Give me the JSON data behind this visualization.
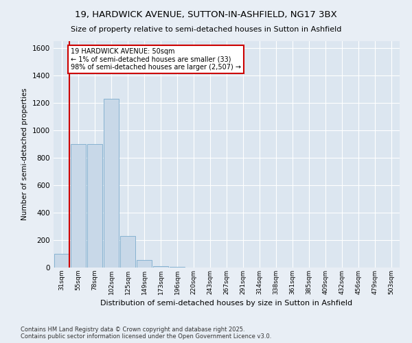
{
  "title": "19, HARDWICK AVENUE, SUTTON-IN-ASHFIELD, NG17 3BX",
  "subtitle": "Size of property relative to semi-detached houses in Sutton in Ashfield",
  "xlabel": "Distribution of semi-detached houses by size in Sutton in Ashfield",
  "ylabel": "Number of semi-detached properties",
  "categories": [
    "31sqm",
    "55sqm",
    "78sqm",
    "102sqm",
    "125sqm",
    "149sqm",
    "173sqm",
    "196sqm",
    "220sqm",
    "243sqm",
    "267sqm",
    "291sqm",
    "314sqm",
    "338sqm",
    "361sqm",
    "385sqm",
    "409sqm",
    "432sqm",
    "456sqm",
    "479sqm",
    "503sqm"
  ],
  "values": [
    100,
    900,
    900,
    1230,
    230,
    55,
    10,
    5,
    0,
    0,
    0,
    0,
    0,
    0,
    0,
    0,
    0,
    0,
    0,
    0,
    0
  ],
  "bar_color": "#c8d8e8",
  "bar_edge_color": "#7aabcc",
  "highlight_color": "#cc0000",
  "annotation_title": "19 HARDWICK AVENUE: 50sqm",
  "annotation_line1": "← 1% of semi-detached houses are smaller (33)",
  "annotation_line2": "98% of semi-detached houses are larger (2,507) →",
  "annotation_box_color": "#cc0000",
  "ylim": [
    0,
    1650
  ],
  "yticks": [
    0,
    200,
    400,
    600,
    800,
    1000,
    1200,
    1400,
    1600
  ],
  "fig_bg_color": "#e8eef5",
  "axes_bg_color": "#dce6f0",
  "grid_color": "#ffffff",
  "footer1": "Contains HM Land Registry data © Crown copyright and database right 2025.",
  "footer2": "Contains public sector information licensed under the Open Government Licence v3.0."
}
